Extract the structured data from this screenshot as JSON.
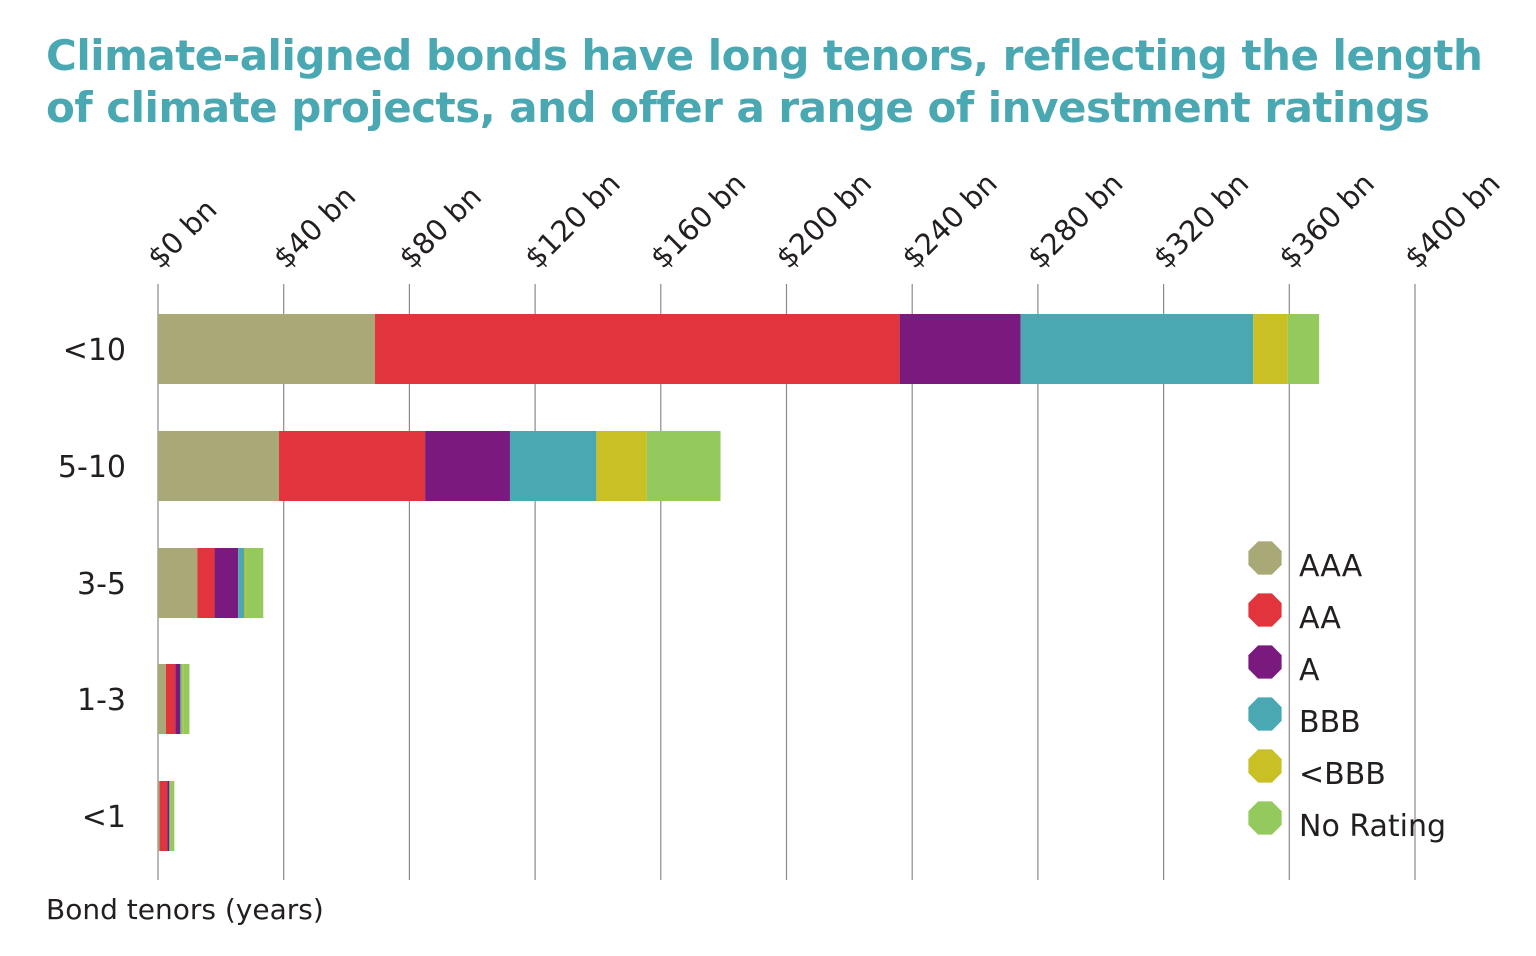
{
  "title": "Climate-aligned bonds have long tenors, reflecting the length of climate projects, and offer a range of investment ratings",
  "chart_data": {
    "type": "bar",
    "orientation": "horizontal",
    "stacked": true,
    "title": "Climate-aligned bonds have long tenors, reflecting the length of climate projects, and offer a range of investment ratings",
    "ylabel": "Bond tenors (years)",
    "xlabel": "",
    "xlim": [
      0,
      400
    ],
    "x_ticks": [
      0,
      40,
      80,
      120,
      160,
      200,
      240,
      280,
      320,
      360,
      400
    ],
    "x_tick_labels": [
      "$0 bn",
      "$40 bn",
      "$80 bn",
      "$120 bn",
      "$160 bn",
      "$200 bn",
      "$240 bn",
      "$280 bn",
      "$320 bn",
      "$360 bn",
      "$400 bn"
    ],
    "axis_position": "top",
    "grid": true,
    "legend_position": "right",
    "categories": [
      "<10",
      "5-10",
      "3-5",
      "1-3",
      "<1"
    ],
    "series": [
      {
        "name": "AAA",
        "color": "#a9a978",
        "values": [
          69,
          38.5,
          12.5,
          2.5,
          0.5
        ]
      },
      {
        "name": "AA",
        "color": "#e2343c",
        "values": [
          167,
          46.5,
          5.5,
          3,
          2.5
        ]
      },
      {
        "name": "A",
        "color": "#7a1a7e",
        "values": [
          38.5,
          27,
          7.5,
          1.5,
          0.5
        ]
      },
      {
        "name": "BBB",
        "color": "#49a8b2",
        "values": [
          74,
          27.5,
          2,
          0.5,
          0.3
        ]
      },
      {
        "name": "<BBB",
        "color": "#c8c024",
        "values": [
          11,
          16,
          0.5,
          0.5,
          0.2
        ]
      },
      {
        "name": "No Rating",
        "color": "#93c95d",
        "values": [
          10,
          23.5,
          5.5,
          2,
          1.2
        ]
      }
    ]
  }
}
